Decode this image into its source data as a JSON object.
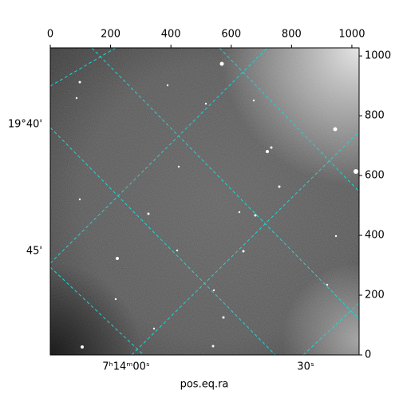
{
  "chart_data": {
    "type": "image",
    "xlabel": "pos.eq.ra",
    "xlim": [
      0,
      1024
    ],
    "xticks": [
      0,
      200,
      400,
      600,
      800,
      1000
    ],
    "ylim": [
      0,
      1027
    ],
    "yticks": [
      0,
      200,
      400,
      600,
      800,
      1000
    ],
    "dec_tick_labels": [
      "19°40'",
      "45'"
    ],
    "ra_tick_labels": [
      "7ʰ14ᵐ00ˢ",
      "30ˢ"
    ]
  }
}
